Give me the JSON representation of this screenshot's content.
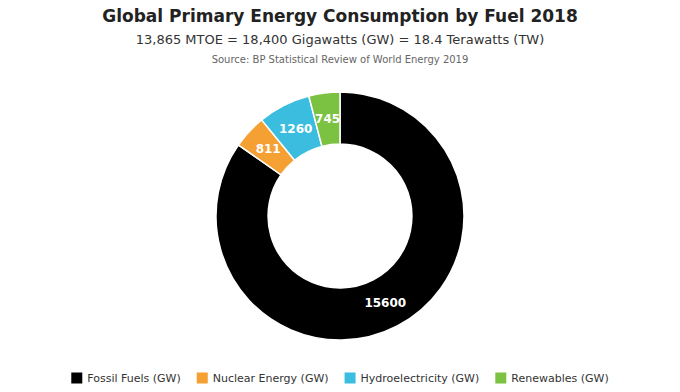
{
  "chart_data": {
    "type": "donut",
    "title": "Global Primary Energy Consumption by Fuel 2018",
    "subtitle": "13,865 MTOE = 18,400 Gigawatts (GW) = 18.4 Terawatts (TW)",
    "annotations": [
      "Source: BP Statistical Review of World Energy 2019"
    ],
    "categories": [
      "Fossil Fuels (GW)",
      "Nuclear Energy (GW)",
      "Hydroelectricity (GW)",
      "Renewables (GW)"
    ],
    "values": [
      15600,
      811,
      1260,
      745
    ],
    "colors": [
      "#000000",
      "#f5a033",
      "#3bbde0",
      "#7bc142"
    ],
    "data_labels": true,
    "legend": "bottom"
  }
}
